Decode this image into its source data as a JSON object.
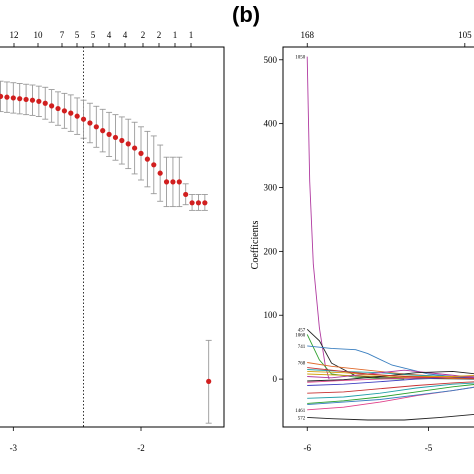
{
  "chart_data": [
    {
      "type": "scatter",
      "panel": "a",
      "top_axis_labels": [
        "12",
        "10",
        "7",
        "5",
        "5",
        "4",
        "4",
        "2",
        "2",
        "1",
        "1"
      ],
      "x_tick_labels": [
        "-3",
        "-2"
      ],
      "xlim": [
        -3.12,
        -1.35
      ],
      "ylim": [
        0,
        1
      ],
      "vline_x": -2.45,
      "points": [
        {
          "x": -3.1,
          "y": 0.87,
          "lo": 0.83,
          "hi": 0.91
        },
        {
          "x": -3.05,
          "y": 0.868,
          "lo": 0.828,
          "hi": 0.908
        },
        {
          "x": -3.0,
          "y": 0.866,
          "lo": 0.826,
          "hi": 0.906
        },
        {
          "x": -2.95,
          "y": 0.864,
          "lo": 0.824,
          "hi": 0.904
        },
        {
          "x": -2.9,
          "y": 0.862,
          "lo": 0.822,
          "hi": 0.902
        },
        {
          "x": -2.85,
          "y": 0.86,
          "lo": 0.82,
          "hi": 0.9
        },
        {
          "x": -2.8,
          "y": 0.857,
          "lo": 0.817,
          "hi": 0.897
        },
        {
          "x": -2.75,
          "y": 0.852,
          "lo": 0.81,
          "hi": 0.894
        },
        {
          "x": -2.7,
          "y": 0.845,
          "lo": 0.802,
          "hi": 0.888
        },
        {
          "x": -2.65,
          "y": 0.838,
          "lo": 0.794,
          "hi": 0.882
        },
        {
          "x": -2.6,
          "y": 0.832,
          "lo": 0.786,
          "hi": 0.878
        },
        {
          "x": -2.55,
          "y": 0.826,
          "lo": 0.778,
          "hi": 0.874
        },
        {
          "x": -2.5,
          "y": 0.818,
          "lo": 0.77,
          "hi": 0.866
        },
        {
          "x": -2.45,
          "y": 0.81,
          "lo": 0.76,
          "hi": 0.86
        },
        {
          "x": -2.4,
          "y": 0.8,
          "lo": 0.748,
          "hi": 0.852
        },
        {
          "x": -2.35,
          "y": 0.79,
          "lo": 0.736,
          "hi": 0.844
        },
        {
          "x": -2.3,
          "y": 0.78,
          "lo": 0.724,
          "hi": 0.836
        },
        {
          "x": -2.25,
          "y": 0.77,
          "lo": 0.712,
          "hi": 0.828
        },
        {
          "x": -2.2,
          "y": 0.762,
          "lo": 0.702,
          "hi": 0.822
        },
        {
          "x": -2.15,
          "y": 0.754,
          "lo": 0.692,
          "hi": 0.816
        },
        {
          "x": -2.1,
          "y": 0.745,
          "lo": 0.68,
          "hi": 0.81
        },
        {
          "x": -2.05,
          "y": 0.734,
          "lo": 0.666,
          "hi": 0.802
        },
        {
          "x": -2.0,
          "y": 0.72,
          "lo": 0.65,
          "hi": 0.79
        },
        {
          "x": -1.95,
          "y": 0.705,
          "lo": 0.632,
          "hi": 0.778
        },
        {
          "x": -1.9,
          "y": 0.69,
          "lo": 0.614,
          "hi": 0.766
        },
        {
          "x": -1.85,
          "y": 0.668,
          "lo": 0.594,
          "hi": 0.742
        },
        {
          "x": -1.8,
          "y": 0.645,
          "lo": 0.58,
          "hi": 0.71
        },
        {
          "x": -1.75,
          "y": 0.645,
          "lo": 0.58,
          "hi": 0.71
        },
        {
          "x": -1.7,
          "y": 0.645,
          "lo": 0.58,
          "hi": 0.71
        },
        {
          "x": -1.65,
          "y": 0.612,
          "lo": 0.585,
          "hi": 0.64
        },
        {
          "x": -1.6,
          "y": 0.59,
          "lo": 0.57,
          "hi": 0.612
        },
        {
          "x": -1.55,
          "y": 0.59,
          "lo": 0.57,
          "hi": 0.612
        },
        {
          "x": -1.5,
          "y": 0.59,
          "lo": 0.57,
          "hi": 0.612
        },
        {
          "x": -1.47,
          "y": 0.12,
          "lo": 0.01,
          "hi": 0.228
        }
      ]
    },
    {
      "type": "line",
      "panel": "b",
      "panel_label": "(b)",
      "ylabel": "Coefficients",
      "top_axis_labels": [
        "168",
        "105"
      ],
      "top_axis_x": [
        -6,
        -4.7
      ],
      "x_tick_labels": [
        "-6",
        "-5"
      ],
      "x_ticks": [
        -6,
        -5
      ],
      "y_tick_labels": [
        "0",
        "100",
        "200",
        "300",
        "400",
        "500"
      ],
      "y_ticks": [
        0,
        100,
        200,
        300,
        400,
        500
      ],
      "xlim": [
        -6.2,
        -4.55
      ],
      "ylim": [
        -75,
        520
      ],
      "variable_labels": [
        {
          "text": "1050",
          "y": 505
        },
        {
          "text": "457",
          "y": 78
        },
        {
          "text": "1060",
          "y": 70
        },
        {
          "text": "741",
          "y": 52
        },
        {
          "text": "768",
          "y": 26
        },
        {
          "text": "1461",
          "y": -48
        },
        {
          "text": "572",
          "y": -60
        }
      ],
      "series": [
        {
          "color": "#b03aa0",
          "x": [
            -6,
            -5.98,
            -5.95,
            -5.9,
            -5.85,
            -5.82
          ],
          "y": [
            505,
            310,
            180,
            80,
            20,
            0
          ]
        },
        {
          "color": "#222222",
          "x": [
            -6,
            -5.9,
            -5.8,
            -5.6,
            -5.4,
            -5.0,
            -4.6
          ],
          "y": [
            78,
            60,
            25,
            5,
            2,
            1,
            0
          ]
        },
        {
          "color": "#2ca02c",
          "x": [
            -6,
            -5.9,
            -5.8,
            -5.6,
            -5.4,
            -5.2
          ],
          "y": [
            70,
            30,
            8,
            3,
            1,
            0
          ]
        },
        {
          "color": "#3a7fc0",
          "x": [
            -6,
            -5.8,
            -5.6,
            -5.5,
            -5.3,
            -5.0,
            -4.7
          ],
          "y": [
            52,
            48,
            46,
            40,
            22,
            8,
            2
          ]
        },
        {
          "color": "#e06a2c",
          "x": [
            -6,
            -5.8,
            -5.5,
            -5.2,
            -4.9,
            -4.6
          ],
          "y": [
            26,
            20,
            14,
            8,
            4,
            2
          ]
        },
        {
          "color": "#22a0a8",
          "x": [
            -6,
            -5.7,
            -5.4,
            -5.1,
            -4.8,
            -4.6
          ],
          "y": [
            15,
            12,
            10,
            6,
            4,
            3
          ]
        },
        {
          "color": "#d4a010",
          "x": [
            -6,
            -5.7,
            -5.4,
            -5.1,
            -4.8,
            -4.6
          ],
          "y": [
            8,
            6,
            4,
            2,
            1,
            1
          ]
        },
        {
          "color": "#e0408a",
          "x": [
            -6,
            -5.7,
            -5.4,
            -5.1,
            -4.8,
            -4.6
          ],
          "y": [
            -5,
            -2,
            0,
            2,
            4,
            5
          ]
        },
        {
          "color": "#4040c0",
          "x": [
            -6,
            -5.7,
            -5.4,
            -5.1,
            -4.8,
            -4.6
          ],
          "y": [
            -10,
            -8,
            -4,
            0,
            2,
            3
          ]
        },
        {
          "color": "#c83232",
          "x": [
            -6,
            -5.7,
            -5.4,
            -5.1,
            -4.8,
            -4.6
          ],
          "y": [
            -22,
            -20,
            -15,
            -10,
            -6,
            -4
          ]
        },
        {
          "color": "#22a0a8",
          "x": [
            -6,
            -5.7,
            -5.4,
            -5.1,
            -4.8,
            -4.6
          ],
          "y": [
            -30,
            -28,
            -22,
            -14,
            -8,
            -6
          ]
        },
        {
          "color": "#2ca02c",
          "x": [
            -6,
            -5.7,
            -5.4,
            -5.1,
            -4.8,
            -4.6
          ],
          "y": [
            -38,
            -34,
            -28,
            -20,
            -12,
            -8
          ]
        },
        {
          "color": "#e0408a",
          "x": [
            -6,
            -5.7,
            -5.4,
            -5.1,
            -4.8,
            -4.6
          ],
          "y": [
            -48,
            -44,
            -36,
            -26,
            -18,
            -12
          ]
        },
        {
          "color": "#222222",
          "x": [
            -6,
            -5.8,
            -5.5,
            -5.2,
            -4.9,
            -4.6
          ],
          "y": [
            -60,
            -62,
            -64,
            -64,
            -60,
            -55
          ]
        },
        {
          "color": "#3a7fc0",
          "x": [
            -6,
            -5.7,
            -5.4,
            -5.1,
            -4.8,
            -4.6
          ],
          "y": [
            -40,
            -36,
            -32,
            -25,
            -18,
            -12
          ]
        },
        {
          "color": "#b03aa0",
          "x": [
            -6,
            -5.8,
            -5.5,
            -5.2,
            -4.9,
            -4.6
          ],
          "y": [
            4,
            2,
            8,
            14,
            8,
            2
          ]
        },
        {
          "color": "#222222",
          "x": [
            -6,
            -5.7,
            -5.4,
            -5.1,
            -4.8,
            -4.6
          ],
          "y": [
            -3,
            -1,
            4,
            10,
            12,
            8
          ]
        },
        {
          "color": "#d4a010",
          "x": [
            -6,
            -5.7,
            -5.4,
            -5.1,
            -4.8,
            -4.6
          ],
          "y": [
            12,
            10,
            6,
            4,
            4,
            6
          ]
        },
        {
          "color": "#c83232",
          "x": [
            -6,
            -5.8,
            -5.5,
            -5.2,
            -4.9,
            -4.6
          ],
          "y": [
            18,
            14,
            8,
            4,
            2,
            1
          ]
        }
      ]
    }
  ]
}
